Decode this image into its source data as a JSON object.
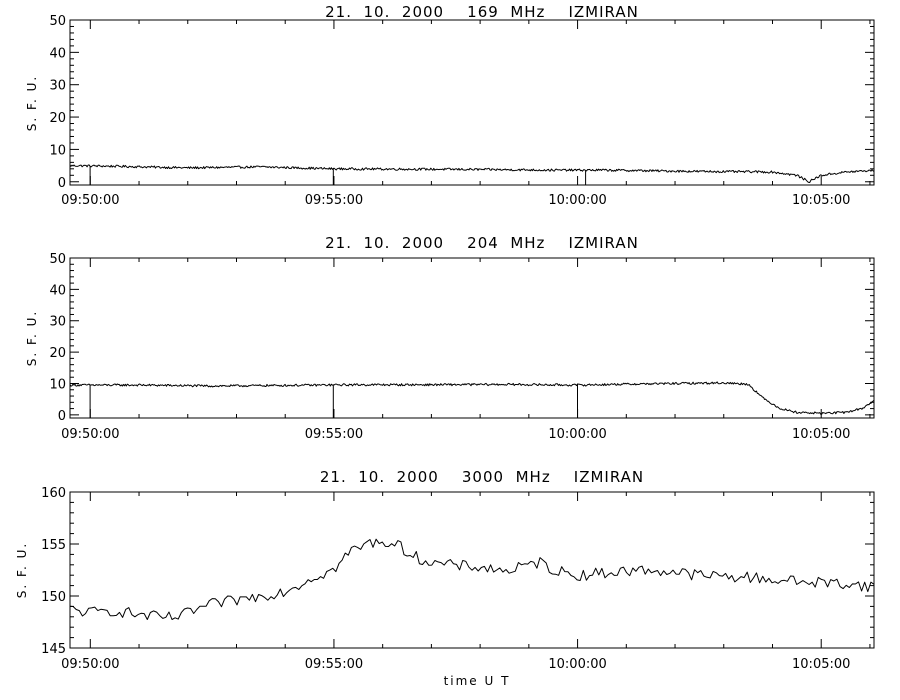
{
  "chart_data": [
    {
      "type": "line",
      "title": "21.  10.  2000    169  MHz    IZMIRAN",
      "ylabel": "S. F. U.",
      "ylim": [
        -1,
        50
      ],
      "yticks": [
        0,
        10,
        20,
        30,
        40,
        50
      ],
      "xlim": [
        "09:49:35",
        "10:06:05"
      ],
      "xticks": [
        "09:50:00",
        "09:55:00",
        "10:00:00",
        "10:05:00"
      ],
      "grid": false,
      "series": [
        {
          "x": [
            "09:49:35",
            "09:50:30",
            "09:52:00",
            "09:53:30",
            "09:55:00",
            "09:56:30",
            "09:58:00",
            "09:59:30",
            "10:00:30",
            "10:01:30",
            "10:02:30",
            "10:03:30",
            "10:04:00",
            "10:04:30",
            "10:04:45",
            "10:05:00",
            "10:05:30",
            "10:06:05"
          ],
          "values": [
            5,
            4.8,
            4.3,
            4.6,
            4.0,
            3.9,
            3.8,
            3.6,
            3.6,
            3.4,
            3.2,
            3.1,
            3.0,
            2.0,
            0,
            2.0,
            3.0,
            3.5
          ],
          "dropouts": [
            "09:50:00",
            "09:55:00",
            "10:00:10"
          ]
        }
      ]
    },
    {
      "type": "line",
      "title": "21.  10.  2000    204  MHz    IZMIRAN",
      "ylabel": "S. F. U.",
      "ylim": [
        -1,
        50
      ],
      "yticks": [
        0,
        10,
        20,
        30,
        40,
        50
      ],
      "xlim": [
        "09:49:35",
        "10:06:05"
      ],
      "xticks": [
        "09:50:00",
        "09:55:00",
        "10:00:00",
        "10:05:00"
      ],
      "grid": false,
      "series": [
        {
          "x": [
            "09:49:35",
            "09:51:00",
            "09:52:30",
            "09:54:00",
            "09:55:30",
            "09:57:00",
            "09:58:30",
            "10:00:00",
            "10:01:00",
            "10:02:00",
            "10:03:00",
            "10:03:30",
            "10:03:50",
            "10:04:10",
            "10:04:30",
            "10:05:00",
            "10:05:30",
            "10:05:50",
            "10:06:05"
          ],
          "values": [
            9.5,
            9.5,
            9.2,
            9.4,
            9.6,
            9.6,
            9.7,
            9.5,
            9.8,
            10.0,
            10.2,
            9.8,
            5.0,
            2.0,
            0.8,
            0.5,
            0.8,
            2.0,
            4.5
          ],
          "dropouts": [
            "09:50:00",
            "09:55:00",
            "10:00:00"
          ]
        }
      ]
    },
    {
      "type": "line",
      "title": "21.  10.  2000    3000  MHz    IZMIRAN",
      "ylabel": "S. F. U.",
      "ylim": [
        145,
        160
      ],
      "yticks": [
        145,
        150,
        155,
        160
      ],
      "xlim": [
        "09:49:35",
        "10:06:05"
      ],
      "xticks": [
        "09:50:00",
        "09:55:00",
        "10:00:00",
        "10:05:00"
      ],
      "xlabel": "time   U T",
      "grid": false,
      "series": [
        {
          "x": [
            "09:49:35",
            "09:50:00",
            "09:50:30",
            "09:51:00",
            "09:51:30",
            "09:51:50",
            "09:52:10",
            "09:52:30",
            "09:53:00",
            "09:53:30",
            "09:54:00",
            "09:54:20",
            "09:54:40",
            "09:55:00",
            "09:55:20",
            "09:55:40",
            "09:56:00",
            "09:56:20",
            "09:56:40",
            "09:57:00",
            "09:57:30",
            "09:58:00",
            "09:58:30",
            "09:59:00",
            "09:59:15",
            "09:59:30",
            "10:00:00",
            "10:00:30",
            "10:01:00",
            "10:01:30",
            "10:02:00",
            "10:02:30",
            "10:03:00",
            "10:03:30",
            "10:04:00",
            "10:04:30",
            "10:05:00",
            "10:05:30",
            "10:06:05"
          ],
          "values": [
            148.7,
            148.4,
            148.6,
            148.2,
            147.9,
            148.0,
            148.7,
            149.2,
            149.6,
            150.0,
            150.5,
            151.2,
            152.0,
            152.5,
            154.3,
            155.0,
            155.3,
            154.8,
            153.8,
            153.2,
            152.9,
            152.8,
            152.4,
            152.9,
            153.3,
            152.5,
            152.0,
            152.2,
            152.4,
            152.5,
            152.3,
            152.0,
            151.9,
            151.8,
            151.6,
            151.4,
            151.3,
            151.2,
            150.9
          ]
        }
      ]
    }
  ]
}
